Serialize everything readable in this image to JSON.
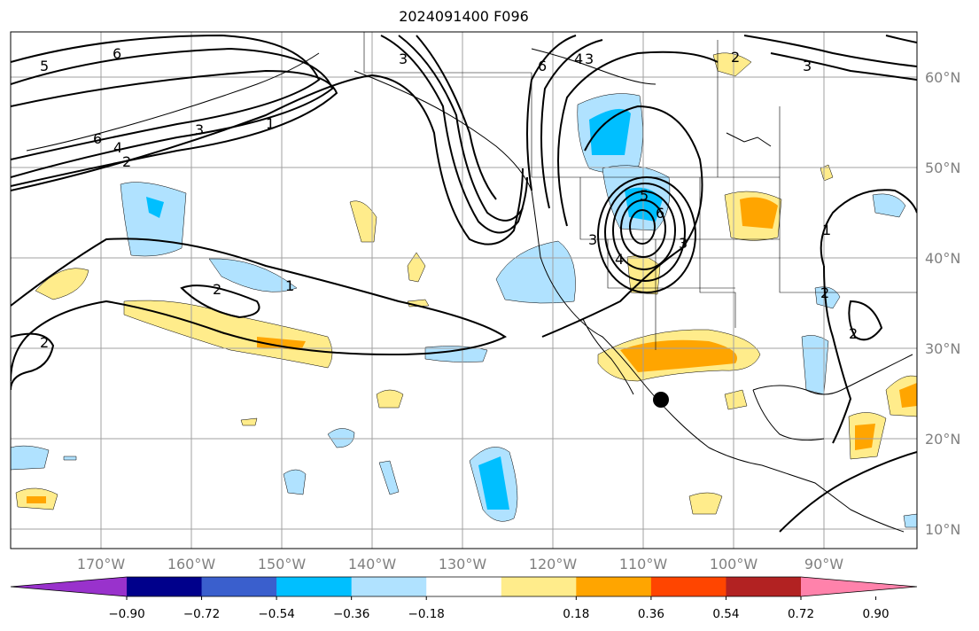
{
  "title": "2024091400 F096",
  "lat_ticks": [
    "60°N",
    "50°N",
    "40°N",
    "30°N",
    "20°N",
    "10°N"
  ],
  "lon_ticks": [
    "170°W",
    "160°W",
    "150°W",
    "140°W",
    "130°W",
    "120°W",
    "110°W",
    "100°W",
    "90°W"
  ],
  "colorbar": {
    "labels": [
      "−0.90",
      "−0.72",
      "−0.54",
      "−0.36",
      "−0.18",
      "0.18",
      "0.36",
      "0.54",
      "0.72",
      "0.90"
    ],
    "colors": [
      "#9932cc",
      "#00008b",
      "#3a5fcd",
      "#00bfff",
      "#b0e2ff",
      "#ffffff",
      "#ffec8b",
      "#ffa500",
      "#ff4500",
      "#b22222",
      "#ff82ab"
    ]
  },
  "contour_labels": [
    "5",
    "6",
    "6",
    "4",
    "2",
    "3",
    "1",
    "2",
    "1",
    "2",
    "3",
    "6",
    "4",
    "3",
    "3",
    "2",
    "3",
    "5",
    "6",
    "3",
    "4",
    "1",
    "2",
    "2"
  ],
  "marker": "point"
}
